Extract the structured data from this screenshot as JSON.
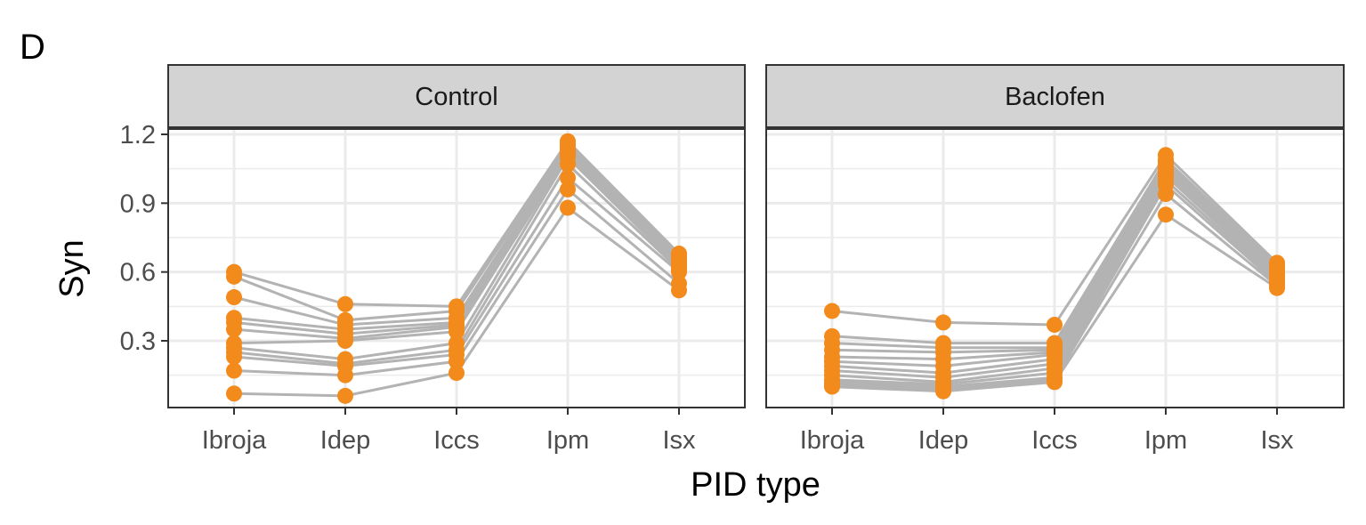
{
  "chart_data": {
    "type": "line",
    "tag": "D",
    "xlabel": "PID type",
    "ylabel": "Syn",
    "categories": [
      "Ibroja",
      "Idep",
      "Iccs",
      "Ipm",
      "Isx"
    ],
    "ylim": [
      0,
      1.22
    ],
    "yticks": [
      0.3,
      0.6,
      0.9,
      1.2
    ],
    "y_tick_labels": [
      "0.3",
      "0.6",
      "0.9",
      "1.2"
    ],
    "line_color": "#b3b3b3",
    "point_color": "#f28a1c",
    "panels": [
      {
        "title": "Control",
        "series": [
          [
            0.6,
            0.46,
            0.45,
            1.17,
            0.68
          ],
          [
            0.58,
            0.39,
            0.43,
            1.16,
            0.67
          ],
          [
            0.49,
            0.37,
            0.4,
            1.15,
            0.66
          ],
          [
            0.4,
            0.35,
            0.38,
            1.14,
            0.65
          ],
          [
            0.38,
            0.33,
            0.37,
            1.13,
            0.64
          ],
          [
            0.35,
            0.31,
            0.36,
            1.12,
            0.63
          ],
          [
            0.29,
            0.3,
            0.34,
            1.11,
            0.62
          ],
          [
            0.27,
            0.22,
            0.29,
            1.1,
            0.62
          ],
          [
            0.25,
            0.2,
            0.26,
            1.07,
            0.61
          ],
          [
            0.23,
            0.19,
            0.24,
            1.01,
            0.6
          ],
          [
            0.17,
            0.15,
            0.21,
            0.96,
            0.55
          ],
          [
            0.07,
            0.06,
            0.16,
            0.88,
            0.52
          ]
        ]
      },
      {
        "title": "Baclofen",
        "series": [
          [
            0.43,
            0.38,
            0.37,
            1.11,
            0.64
          ],
          [
            0.32,
            0.29,
            0.29,
            1.09,
            0.63
          ],
          [
            0.29,
            0.27,
            0.27,
            1.08,
            0.62
          ],
          [
            0.26,
            0.25,
            0.26,
            1.07,
            0.61
          ],
          [
            0.23,
            0.22,
            0.25,
            1.06,
            0.6
          ],
          [
            0.21,
            0.19,
            0.24,
            1.05,
            0.59
          ],
          [
            0.19,
            0.16,
            0.22,
            1.04,
            0.59
          ],
          [
            0.17,
            0.14,
            0.2,
            1.03,
            0.58
          ],
          [
            0.15,
            0.12,
            0.18,
            1.02,
            0.57
          ],
          [
            0.13,
            0.11,
            0.16,
            1.0,
            0.56
          ],
          [
            0.12,
            0.1,
            0.14,
            0.98,
            0.55
          ],
          [
            0.11,
            0.09,
            0.13,
            0.94,
            0.54
          ],
          [
            0.1,
            0.08,
            0.12,
            0.85,
            0.53
          ]
        ]
      }
    ]
  }
}
